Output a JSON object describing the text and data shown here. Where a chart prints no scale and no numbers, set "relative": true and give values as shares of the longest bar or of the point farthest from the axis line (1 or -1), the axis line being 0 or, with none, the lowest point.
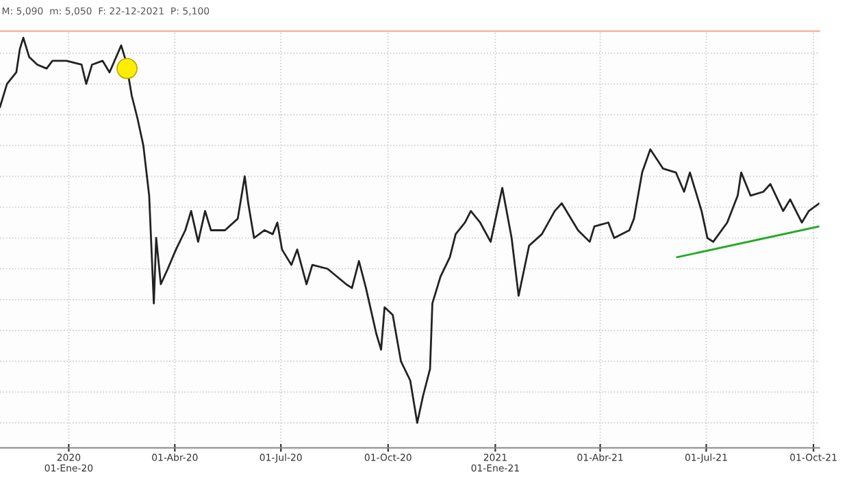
{
  "chart_data": {
    "type": "line",
    "relative": true,
    "grid": true,
    "annotations": [
      "M: 5,090  m: 5,050  F: 22-12-2021  P: 5,100"
    ],
    "xlim": [
      "2019-11-03",
      "2021-10-06"
    ],
    "xticks": [
      {
        "value": "2020-01-01",
        "label": "2020\n01-Ene-20"
      },
      {
        "value": "2020-04-01",
        "label": "01-Abr-20"
      },
      {
        "value": "2020-07-01",
        "label": "01-Jul-20"
      },
      {
        "value": "2020-10-01",
        "label": "01-Oct-20"
      },
      {
        "value": "2021-01-01",
        "label": "2021\n01-Ene-21"
      },
      {
        "value": "2021-04-01",
        "label": "01-Abr-21"
      },
      {
        "value": "2021-07-01",
        "label": "01-Jul-21"
      },
      {
        "value": "2021-10-01",
        "label": "01-Oct-21"
      }
    ],
    "series": [
      {
        "color": "#222222",
        "x": [
          "2019-11-03",
          "2019-11-09",
          "2019-11-17",
          "2019-11-20",
          "2019-11-23",
          "2019-11-28",
          "2019-12-05",
          "2019-12-13",
          "2019-12-18",
          "2019-12-30",
          "2020-01-12",
          "2020-01-16",
          "2020-01-21",
          "2020-01-30",
          "2020-02-05",
          "2020-02-15",
          "2020-02-19",
          "2020-02-24",
          "2020-02-29",
          "2020-03-05",
          "2020-03-10",
          "2020-03-14",
          "2020-03-16",
          "2020-03-20",
          "2020-03-26",
          "2020-04-02",
          "2020-04-10",
          "2020-04-15",
          "2020-04-21",
          "2020-04-27",
          "2020-05-02",
          "2020-05-14",
          "2020-05-25",
          "2020-05-31",
          "2020-06-03",
          "2020-06-08",
          "2020-06-17",
          "2020-06-24",
          "2020-06-28",
          "2020-07-02",
          "2020-07-10",
          "2020-07-15",
          "2020-07-23",
          "2020-07-28",
          "2020-08-10",
          "2020-08-26",
          "2020-08-31",
          "2020-09-06",
          "2020-09-12",
          "2020-09-21",
          "2020-09-25",
          "2020-09-28",
          "2020-10-05",
          "2020-10-12",
          "2020-10-20",
          "2020-10-26",
          "2020-10-31",
          "2020-11-06",
          "2020-11-08",
          "2020-11-15",
          "2020-11-23",
          "2020-11-28",
          "2020-12-06",
          "2020-12-11",
          "2020-12-19",
          "2020-12-28",
          "2021-01-07",
          "2021-01-15",
          "2021-01-21",
          "2021-01-30",
          "2021-02-10",
          "2021-02-21",
          "2021-02-27",
          "2021-03-13",
          "2021-03-23",
          "2021-03-27",
          "2021-04-08",
          "2021-04-13",
          "2021-04-26",
          "2021-04-30",
          "2021-05-07",
          "2021-05-14",
          "2021-05-25",
          "2021-06-05",
          "2021-06-12",
          "2021-06-17",
          "2021-06-27",
          "2021-07-02",
          "2021-07-07",
          "2021-07-19",
          "2021-07-28",
          "2021-07-31",
          "2021-08-08",
          "2021-08-19",
          "2021-08-25",
          "2021-09-05",
          "2021-09-11",
          "2021-09-21",
          "2021-09-27",
          "2021-10-06"
        ],
        "values": [
          0.82,
          0.88,
          0.91,
          0.97,
          1.0,
          0.95,
          0.93,
          0.92,
          0.94,
          0.94,
          0.93,
          0.88,
          0.93,
          0.94,
          0.91,
          0.98,
          0.94,
          0.85,
          0.79,
          0.72,
          0.59,
          0.31,
          0.48,
          0.36,
          0.4,
          0.45,
          0.5,
          0.55,
          0.47,
          0.55,
          0.5,
          0.5,
          0.53,
          0.64,
          0.57,
          0.48,
          0.5,
          0.49,
          0.52,
          0.45,
          0.41,
          0.45,
          0.36,
          0.41,
          0.4,
          0.36,
          0.35,
          0.42,
          0.35,
          0.23,
          0.19,
          0.3,
          0.28,
          0.16,
          0.11,
          0.0,
          0.07,
          0.14,
          0.31,
          0.38,
          0.43,
          0.49,
          0.52,
          0.55,
          0.52,
          0.47,
          0.61,
          0.48,
          0.33,
          0.46,
          0.49,
          0.55,
          0.57,
          0.5,
          0.47,
          0.51,
          0.52,
          0.48,
          0.5,
          0.53,
          0.65,
          0.71,
          0.66,
          0.65,
          0.6,
          0.65,
          0.55,
          0.48,
          0.47,
          0.52,
          0.59,
          0.65,
          0.59,
          0.6,
          0.62,
          0.55,
          0.58,
          0.52,
          0.55,
          0.57
        ]
      },
      {
        "color": "#22aa22",
        "x": [
          "2021-06-06",
          "2021-10-06"
        ],
        "values": [
          0.43,
          0.51
        ]
      },
      {
        "type": "scatter",
        "color": "#ffee00",
        "x": [
          "2020-02-20"
        ],
        "values": [
          0.92
        ]
      }
    ]
  }
}
